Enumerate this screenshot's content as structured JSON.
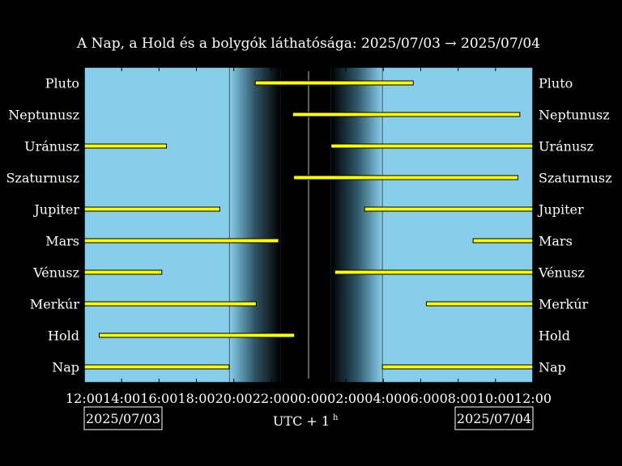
{
  "chart_data": {
    "type": "gantt",
    "title": "A Nap, a Hold és a bolygók láthatósága: 2025/07/03 → 2025/07/04",
    "x_tick_labels": [
      "12:00",
      "14:00",
      "16:00",
      "18:00",
      "20:00",
      "22:00",
      "00:00",
      "02:00",
      "04:00",
      "06:00",
      "08:00",
      "10:00",
      "12:00"
    ],
    "x_range_hours": [
      0,
      24
    ],
    "x_axis_label": "UTC + 1",
    "x_axis_label_superscript": "h",
    "date_start": "2025/07/03",
    "date_end": "2025/07/04",
    "colors": {
      "day": "#87ceeb",
      "night": "#000000",
      "bar": "#ffff00",
      "bar_edge": "#000000",
      "background": "#000000",
      "text": "#ffffff"
    },
    "twilight": {
      "sunset": 7.77,
      "dusk_end": 10.5,
      "midnight": 12.0,
      "dawn_start": 13.2,
      "sunrise": 15.95
    },
    "bodies": [
      {
        "name": "Pluto",
        "intervals": [
          [
            9.15,
            17.6
          ]
        ]
      },
      {
        "name": "Neptunusz",
        "intervals": [
          [
            11.15,
            23.3
          ]
        ]
      },
      {
        "name": "Uránusz",
        "intervals": [
          [
            0,
            4.4
          ],
          [
            13.2,
            24
          ]
        ]
      },
      {
        "name": "Szaturnusz",
        "intervals": [
          [
            11.2,
            23.2
          ]
        ]
      },
      {
        "name": "Jupiter",
        "intervals": [
          [
            0,
            7.25
          ],
          [
            15.0,
            24
          ]
        ]
      },
      {
        "name": "Mars",
        "intervals": [
          [
            0,
            10.4
          ],
          [
            20.8,
            24
          ]
        ]
      },
      {
        "name": "Vénusz",
        "intervals": [
          [
            0,
            4.15
          ],
          [
            13.4,
            24
          ]
        ]
      },
      {
        "name": "Merkúr",
        "intervals": [
          [
            0,
            9.2
          ],
          [
            18.3,
            24
          ]
        ]
      },
      {
        "name": "Hold",
        "intervals": [
          [
            0.8,
            11.25
          ]
        ]
      },
      {
        "name": "Nap",
        "intervals": [
          [
            0,
            7.75
          ],
          [
            15.95,
            24
          ]
        ]
      }
    ]
  }
}
